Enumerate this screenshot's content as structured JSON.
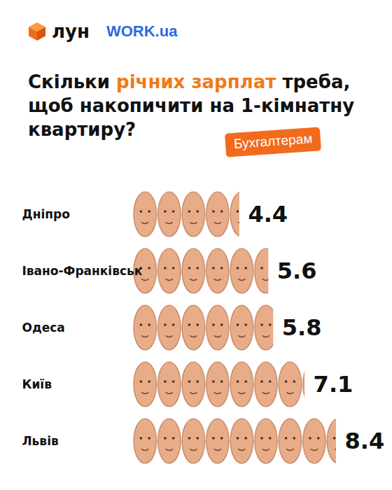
{
  "chart_data": {
    "type": "bar",
    "orientation": "horizontal",
    "title": "Скільки річних зарплат треба, щоб накопичити на 1-кімнатну квартиру?",
    "logos": [
      "лун",
      "WORK.ua"
    ],
    "badge": "Бухгалтерам",
    "categories": [
      "Дніпро",
      "Івано-Франківськ",
      "Одеса",
      "Київ",
      "Львів"
    ],
    "values": [
      4.4,
      5.6,
      5.8,
      7.1,
      8.4
    ],
    "color": "#e8ad88",
    "data_labels": true,
    "tick_labels": "y"
  }
}
